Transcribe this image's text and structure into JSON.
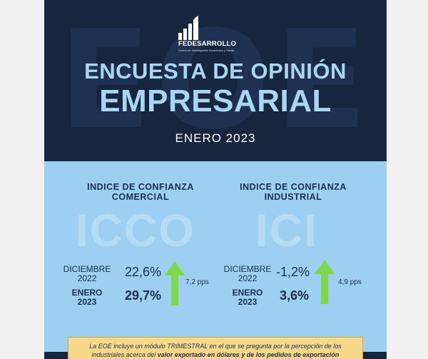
{
  "header": {
    "watermark": "EOE",
    "org_name": "FEDESARROLLO",
    "org_sub": "Centro de Investigación Económica y Social",
    "title_line1": "ENCUESTA DE OPINIÓN",
    "title_line2": "EMPRESARIAL",
    "date": "ENERO 2023"
  },
  "indices": [
    {
      "title_line1": "INDICE DE CONFIANZA",
      "title_line2": "COMERCIAL",
      "acronym": "ICCO",
      "prev_label_line1": "DICIEMBRE",
      "prev_label_line2": "2022",
      "prev_value": "22,6%",
      "curr_label_line1": "ENERO",
      "curr_label_line2": "2023",
      "curr_value": "29,7%",
      "change": "7,2 pps"
    },
    {
      "title_line1": "INDICE DE CONFIANZA",
      "title_line2": "INDUSTRIAL",
      "acronym": "ICI",
      "prev_label_line1": "DICIEMBRE",
      "prev_label_line2": "2022",
      "prev_value": "-1,2%",
      "curr_label_line1": "ENERO",
      "curr_label_line2": "2023",
      "curr_value": "3,6%",
      "change": "4,9 pps"
    }
  ],
  "note": {
    "part1": "La EOE incluye un módulo TRIMESTRAL en el que se pregunta por la percepción de los industriales acerca del ",
    "bold": "valor exportado en dólares y de los pedidos de exportación"
  },
  "colors": {
    "navy": "#16263f",
    "light_blue": "#9ccff0",
    "title_blue": "#a8d6f3",
    "arrow_green": "#7dd84a",
    "note_yellow": "#f7d889"
  }
}
